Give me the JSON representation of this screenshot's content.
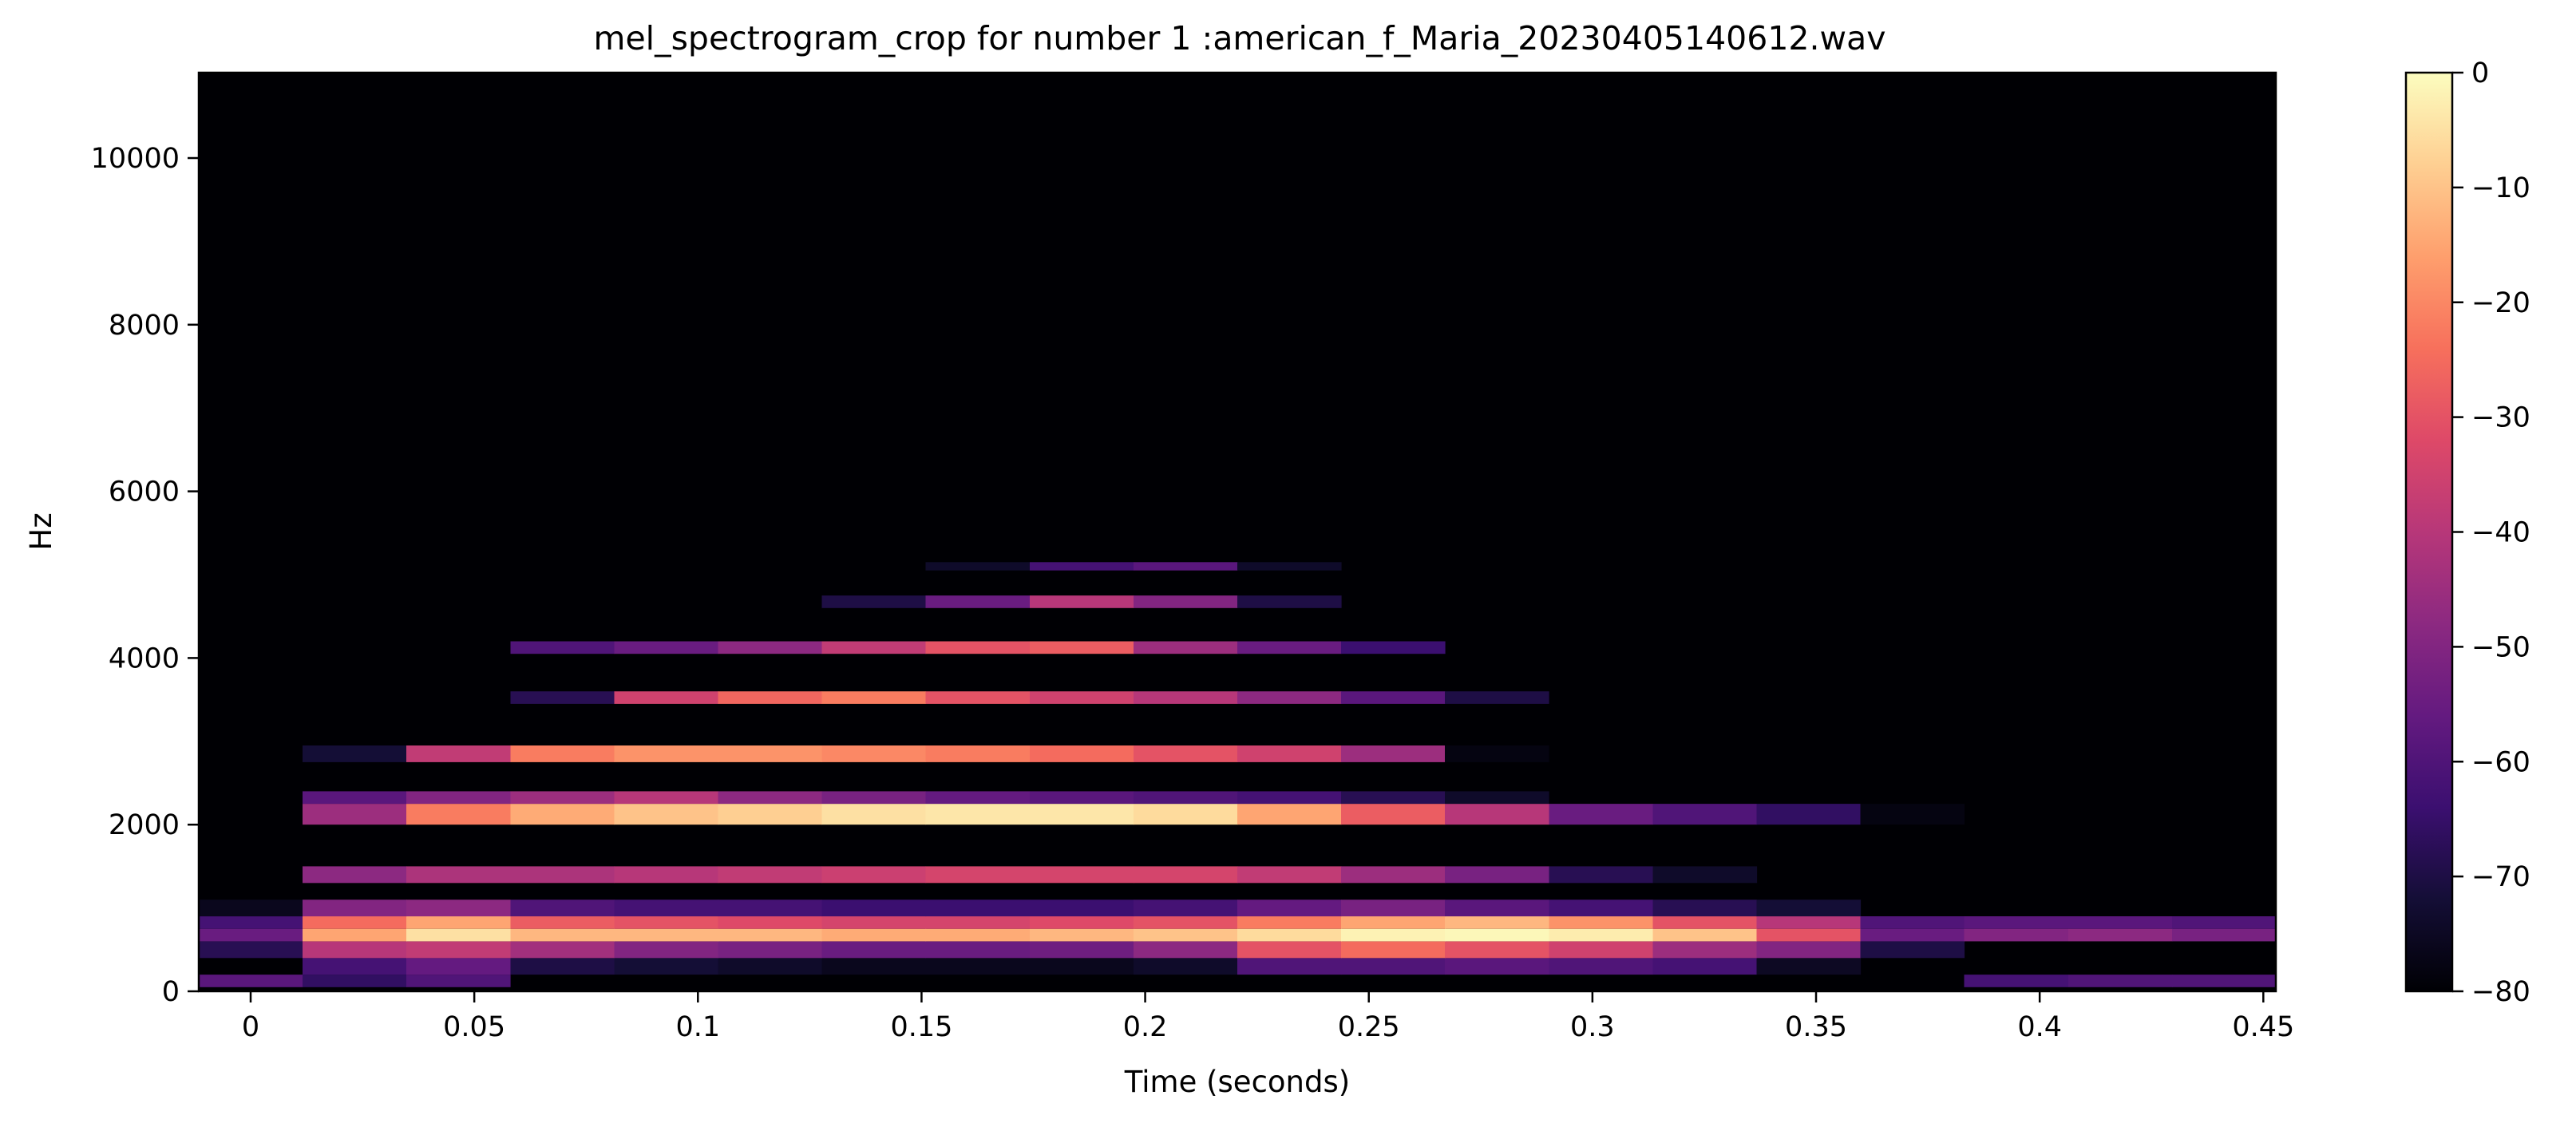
{
  "chart_data": {
    "type": "heatmap",
    "title": "mel_spectrogram_crop for number 1 :american_f_Maria_20230405140612.wav",
    "xlabel": "Time (seconds)",
    "ylabel": "Hz",
    "xlim": [
      -0.0116,
      0.4528
    ],
    "ylim": [
      0,
      11025
    ],
    "x_ticks": [
      0,
      0.05,
      0.1,
      0.15,
      0.2,
      0.25,
      0.3,
      0.35,
      0.4,
      0.45
    ],
    "x_tick_labels": [
      "0",
      "0.05",
      "0.1",
      "0.15",
      "0.2",
      "0.25",
      "0.3",
      "0.35",
      "0.4",
      "0.45"
    ],
    "y_ticks": [
      0,
      2000,
      4000,
      6000,
      8000,
      10000
    ],
    "y_tick_labels": [
      "0",
      "2000",
      "4000",
      "6000",
      "8000",
      "10000"
    ],
    "colorbar": {
      "colormap": "magma",
      "range": [
        -80,
        0
      ],
      "ticks": [
        0,
        -10,
        -20,
        -30,
        -40,
        -50,
        -60,
        -70,
        -80
      ],
      "tick_labels": [
        "0",
        "−10",
        "−20",
        "−30",
        "−40",
        "−50",
        "−60",
        "−70",
        "−80"
      ]
    },
    "frame_times": [
      0,
      0.0232,
      0.0464,
      0.0697,
      0.0929,
      0.1161,
      0.1393,
      0.1625,
      0.1858,
      0.209,
      0.2322,
      0.2554,
      0.2786,
      0.3019,
      0.3251,
      0.3483,
      0.3715,
      0.3947,
      0.418,
      0.4412
    ],
    "background_db": -80,
    "bands": [
      {
        "f_lo": 50,
        "f_hi": 200,
        "db": [
          -58,
          -66,
          -60,
          -80,
          -80,
          -80,
          -80,
          -80,
          -80,
          -80,
          -80,
          -80,
          -80,
          -80,
          -80,
          -80,
          -80,
          -62,
          -60,
          -60
        ]
      },
      {
        "f_lo": 200,
        "f_hi": 400,
        "db": [
          -80,
          -62,
          -56,
          -70,
          -72,
          -74,
          -76,
          -76,
          -76,
          -74,
          -60,
          -60,
          -58,
          -60,
          -62,
          -75,
          -80,
          -80,
          -80,
          -80
        ]
      },
      {
        "f_lo": 400,
        "f_hi": 600,
        "db": [
          -68,
          -40,
          -38,
          -44,
          -50,
          -52,
          -55,
          -55,
          -54,
          -48,
          -30,
          -25,
          -30,
          -35,
          -45,
          -50,
          -70,
          -80,
          -80,
          -80
        ]
      },
      {
        "f_lo": 600,
        "f_hi": 750,
        "db": [
          -55,
          -15,
          -5,
          -12,
          -12,
          -12,
          -14,
          -14,
          -12,
          -10,
          -6,
          -2,
          -1,
          -3,
          -10,
          -30,
          -55,
          -50,
          -48,
          -52
        ]
      },
      {
        "f_lo": 750,
        "f_hi": 900,
        "db": [
          -62,
          -25,
          -15,
          -28,
          -30,
          -32,
          -34,
          -34,
          -32,
          -30,
          -22,
          -15,
          -12,
          -18,
          -30,
          -40,
          -60,
          -58,
          -58,
          -60
        ]
      },
      {
        "f_lo": 900,
        "f_hi": 1100,
        "db": [
          -76,
          -50,
          -48,
          -60,
          -62,
          -62,
          -64,
          -64,
          -64,
          -62,
          -56,
          -52,
          -58,
          -62,
          -68,
          -72,
          -80,
          -80,
          -80,
          -80
        ]
      },
      {
        "f_lo": 1300,
        "f_hi": 1500,
        "db": [
          -80,
          -48,
          -42,
          -42,
          -40,
          -38,
          -36,
          -34,
          -34,
          -34,
          -38,
          -45,
          -52,
          -68,
          -74,
          -80,
          -80,
          -80,
          -80,
          -80
        ]
      },
      {
        "f_lo": 2000,
        "f_hi": 2250,
        "db": [
          -80,
          -45,
          -22,
          -14,
          -10,
          -8,
          -5,
          -4,
          -4,
          -6,
          -15,
          -28,
          -40,
          -55,
          -60,
          -66,
          -78,
          -80,
          -80,
          -80
        ]
      },
      {
        "f_lo": 2250,
        "f_hi": 2400,
        "db": [
          -80,
          -58,
          -50,
          -45,
          -40,
          -48,
          -52,
          -56,
          -58,
          -60,
          -62,
          -68,
          -74,
          -80,
          -80,
          -80,
          -80,
          -80,
          -80,
          -80
        ]
      },
      {
        "f_lo": 2750,
        "f_hi": 2950,
        "db": [
          -80,
          -72,
          -38,
          -22,
          -18,
          -18,
          -20,
          -22,
          -25,
          -30,
          -35,
          -45,
          -78,
          -80,
          -80,
          -80,
          -80,
          -80,
          -80,
          -80
        ]
      },
      {
        "f_lo": 3450,
        "f_hi": 3600,
        "db": [
          -80,
          -80,
          -80,
          -68,
          -35,
          -26,
          -22,
          -30,
          -35,
          -40,
          -48,
          -58,
          -70,
          -80,
          -80,
          -80,
          -80,
          -80,
          -80,
          -80
        ]
      },
      {
        "f_lo": 4050,
        "f_hi": 4200,
        "db": [
          -80,
          -80,
          -80,
          -60,
          -55,
          -48,
          -38,
          -30,
          -28,
          -45,
          -55,
          -64,
          -80,
          -80,
          -80,
          -80,
          -80,
          -80,
          -80,
          -80
        ]
      },
      {
        "f_lo": 4600,
        "f_hi": 4750,
        "db": [
          -80,
          -80,
          -80,
          -80,
          -80,
          -80,
          -70,
          -55,
          -40,
          -50,
          -70,
          -80,
          -80,
          -80,
          -80,
          -80,
          -80,
          -80,
          -80,
          -80
        ]
      },
      {
        "f_lo": 5050,
        "f_hi": 5150,
        "db": [
          -80,
          -80,
          -80,
          -80,
          -80,
          -80,
          -80,
          -74,
          -62,
          -58,
          -74,
          -80,
          -80,
          -80,
          -80,
          -80,
          -80,
          -80,
          -80,
          -80
        ]
      }
    ]
  }
}
